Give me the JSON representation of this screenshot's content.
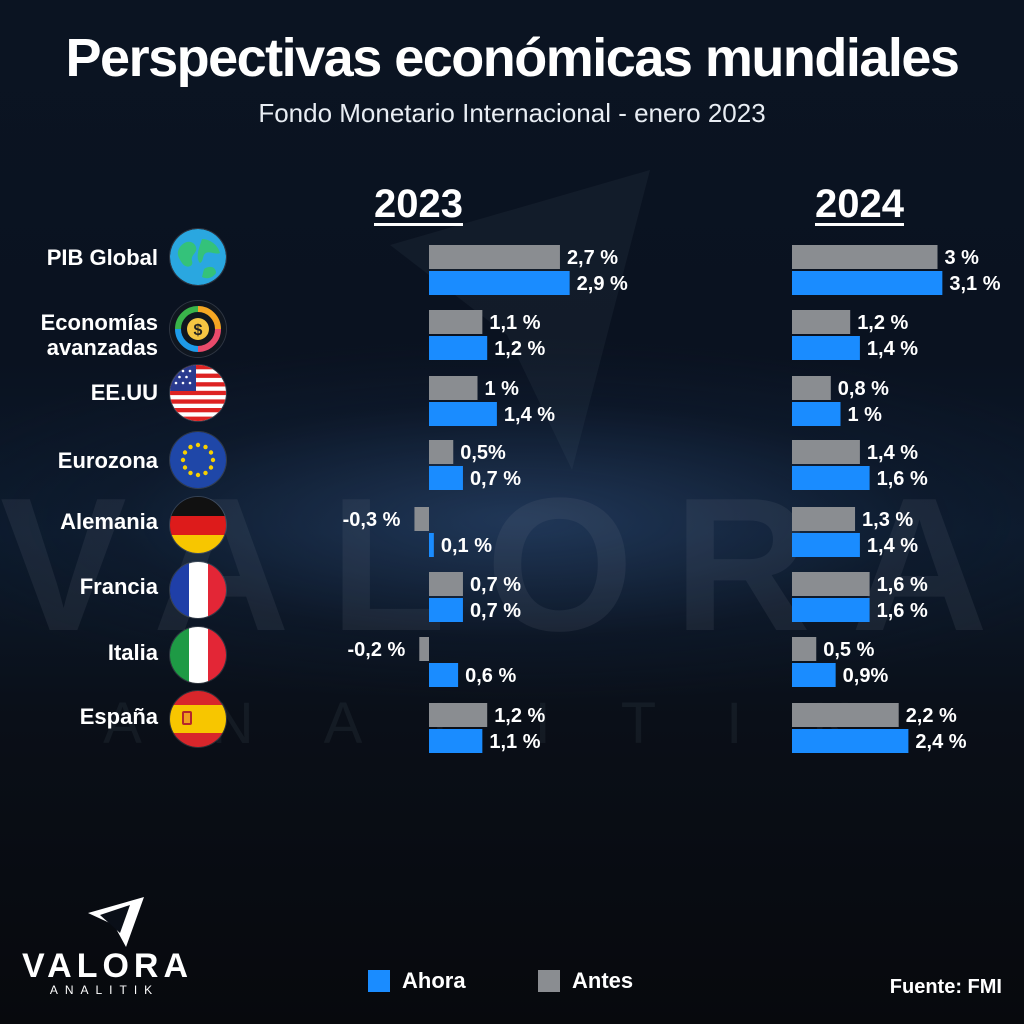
{
  "header": {
    "title": "Perspectivas económicas mundiales",
    "subtitle": "Fondo Monetario Internacional - enero 2023"
  },
  "watermark": {
    "text": "VALORA",
    "subtext": "ANALITIK"
  },
  "logo": {
    "name": "VALORA",
    "sub": "ANALITIK"
  },
  "source": "Fuente: FMI",
  "colors": {
    "ahora": "#1a8cff",
    "antes": "#8a8d91"
  },
  "flags": [
    {
      "icon": "globe-icon"
    },
    {
      "icon": "exchange-dollar-icon"
    },
    {
      "icon": "usa-flag-icon"
    },
    {
      "icon": "eu-flag-icon"
    },
    {
      "icon": "germany-flag-icon"
    },
    {
      "icon": "france-flag-icon"
    },
    {
      "icon": "italy-flag-icon"
    },
    {
      "icon": "spain-flag-icon"
    }
  ],
  "chart_data": {
    "type": "bar",
    "orientation": "horizontal",
    "title": "Perspectivas económicas mundiales",
    "subtitle": "Fondo Monetario Internacional - enero 2023",
    "categories": [
      "PIB Global",
      "Economías avanzadas",
      "EE.UU",
      "Eurozona",
      "Alemania",
      "Francia",
      "Italia",
      "España"
    ],
    "legend": [
      {
        "name": "Ahora",
        "color": "#1a8cff"
      },
      {
        "name": "Antes",
        "color": "#8a8d91"
      }
    ],
    "legend_position": "bottom",
    "panels": [
      {
        "year": "2023",
        "antes": [
          2.7,
          1.1,
          1.0,
          0.5,
          -0.3,
          0.7,
          -0.2,
          1.2
        ],
        "ahora": [
          2.9,
          1.2,
          1.4,
          0.7,
          0.1,
          0.7,
          0.6,
          1.1
        ],
        "antes_labels": [
          "2,7 %",
          "1,1 %",
          "1 %",
          "0,5%",
          "-0,3 %",
          "0,7 %",
          "-0,2 %",
          "1,2 %"
        ],
        "ahora_labels": [
          "2,9 %",
          "1,2 %",
          "1,4 %",
          "0,7 %",
          "0,1 %",
          "0,7 %",
          "0,6 %",
          "1,1 %"
        ]
      },
      {
        "year": "2024",
        "antes": [
          3.0,
          1.2,
          0.8,
          1.4,
          1.3,
          1.6,
          0.5,
          2.2
        ],
        "ahora": [
          3.1,
          1.4,
          1.0,
          1.6,
          1.4,
          1.6,
          0.9,
          2.4
        ],
        "antes_labels": [
          "3 %",
          "1,2 %",
          "0,8 %",
          "1,4 %",
          "1,3 %",
          "1,6 %",
          "0,5 %",
          "2,2 %"
        ],
        "ahora_labels": [
          "3,1 %",
          "1,4 %",
          "1 %",
          "1,6 %",
          "1,4 %",
          "1,6 %",
          "0,9%",
          "2,4 %"
        ]
      }
    ]
  }
}
